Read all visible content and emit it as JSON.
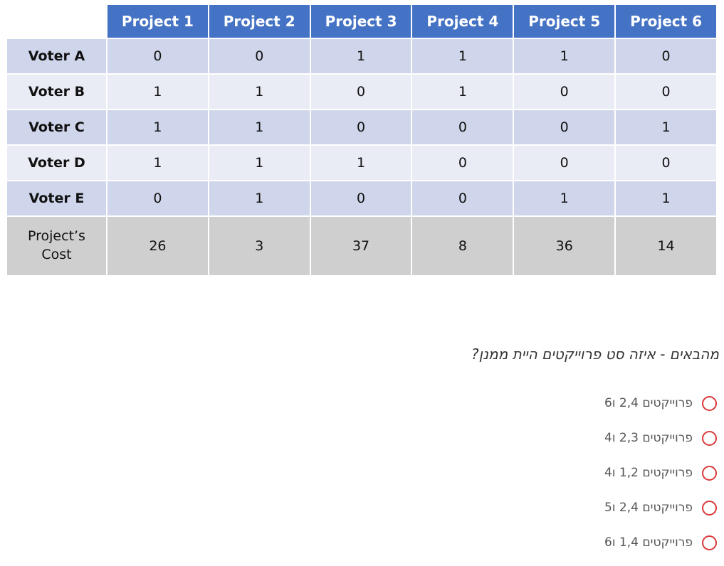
{
  "table": {
    "columns": [
      "Project 1",
      "Project 2",
      "Project 3",
      "Project 4",
      "Project 5",
      "Project 6"
    ],
    "rows": [
      {
        "label": "Voter A",
        "values": [
          0,
          0,
          1,
          1,
          1,
          0
        ]
      },
      {
        "label": "Voter B",
        "values": [
          1,
          1,
          0,
          1,
          0,
          0
        ]
      },
      {
        "label": "Voter C",
        "values": [
          1,
          1,
          0,
          0,
          0,
          1
        ]
      },
      {
        "label": "Voter D",
        "values": [
          1,
          1,
          1,
          0,
          0,
          0
        ]
      },
      {
        "label": "Voter E",
        "values": [
          0,
          1,
          0,
          0,
          1,
          1
        ]
      }
    ],
    "cost": {
      "label": "Project’s Cost",
      "values": [
        26,
        3,
        37,
        8,
        36,
        14
      ]
    }
  },
  "question": {
    "text": "מהבאים - איזה סט פרוייקטים היית ממנן?",
    "options": [
      "פרוייקטים 2,4 ו6",
      "פרוייקטים 2,3 ו4",
      "פרוייקטים 1,2 ו4",
      "פרוייקטים 2,4 ו5",
      "פרוייקטים 1,4 ו6"
    ]
  }
}
